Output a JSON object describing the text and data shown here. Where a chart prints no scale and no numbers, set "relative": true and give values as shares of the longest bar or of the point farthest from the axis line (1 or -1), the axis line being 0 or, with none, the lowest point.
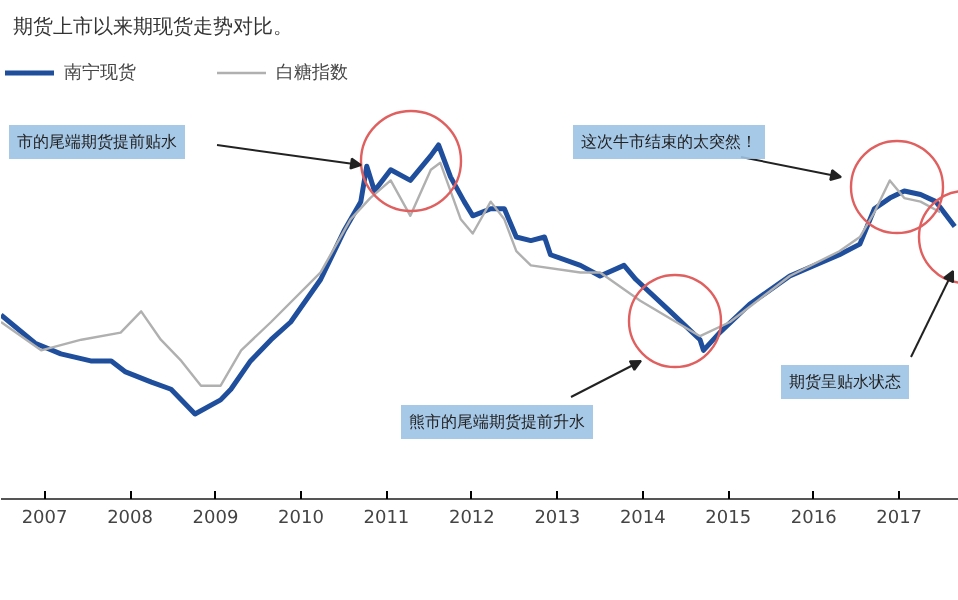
{
  "chart_data": {
    "type": "line",
    "title": "期货上市以来期现货走势对比。",
    "relative": true,
    "xlim": [
      2006.49,
      2017.7
    ],
    "xticks": [
      2007,
      2008,
      2009,
      2010,
      2011,
      2012,
      2013,
      2014,
      2015,
      2016,
      2017
    ],
    "grid": false,
    "legend": "top left",
    "marker": "none",
    "line_style": "solid",
    "series": [
      {
        "name": "南宁现货",
        "color": "#1f4e9c",
        "x": [
          2006.49,
          2006.89,
          2007.19,
          2007.54,
          2007.78,
          2007.94,
          2008.25,
          2008.48,
          2008.76,
          2009.06,
          2009.18,
          2009.41,
          2009.65,
          2009.88,
          2010.23,
          2010.51,
          2010.7,
          2010.77,
          2010.86,
          2011.05,
          2011.28,
          2011.52,
          2011.61,
          2011.75,
          2011.91,
          2012.01,
          2012.22,
          2012.38,
          2012.52,
          2012.69,
          2012.85,
          2012.92,
          2013.27,
          2013.5,
          2013.78,
          2013.92,
          2014.32,
          2014.67,
          2014.71,
          2014.9,
          2015.25,
          2015.72,
          2016.3,
          2016.54,
          2016.71,
          2016.89,
          2017.06,
          2017.25,
          2017.43,
          2017.65
        ],
        "values": [
          0.52,
          0.44,
          0.41,
          0.39,
          0.39,
          0.36,
          0.33,
          0.31,
          0.24,
          0.28,
          0.31,
          0.39,
          0.45,
          0.5,
          0.62,
          0.76,
          0.84,
          0.94,
          0.87,
          0.93,
          0.9,
          0.97,
          1.0,
          0.91,
          0.84,
          0.8,
          0.82,
          0.82,
          0.74,
          0.73,
          0.74,
          0.69,
          0.66,
          0.63,
          0.66,
          0.62,
          0.53,
          0.45,
          0.42,
          0.47,
          0.55,
          0.63,
          0.69,
          0.72,
          0.82,
          0.85,
          0.87,
          0.86,
          0.84,
          0.77
        ]
      },
      {
        "name": "白糖指数",
        "color": "#b0b0b0",
        "x": [
          2006.49,
          2006.96,
          2007.43,
          2007.89,
          2008.13,
          2008.36,
          2008.6,
          2008.83,
          2009.06,
          2009.3,
          2009.65,
          2010.23,
          2010.58,
          2010.81,
          2011.05,
          2011.28,
          2011.52,
          2011.63,
          2011.87,
          2012.01,
          2012.22,
          2012.38,
          2012.52,
          2012.69,
          2013.27,
          2013.5,
          2013.97,
          2014.67,
          2015.02,
          2015.72,
          2016.3,
          2016.54,
          2016.71,
          2016.89,
          2017.06,
          2017.25,
          2017.48
        ],
        "values": [
          0.5,
          0.42,
          0.45,
          0.47,
          0.53,
          0.45,
          0.39,
          0.32,
          0.32,
          0.42,
          0.5,
          0.64,
          0.79,
          0.85,
          0.9,
          0.8,
          0.93,
          0.95,
          0.79,
          0.75,
          0.84,
          0.79,
          0.7,
          0.66,
          0.64,
          0.64,
          0.56,
          0.46,
          0.5,
          0.63,
          0.7,
          0.74,
          0.81,
          0.9,
          0.85,
          0.84,
          0.81
        ]
      }
    ],
    "annotations": [
      "市的尾端期货提前贴水",
      "这次牛市结束的太突然！",
      "熊市的尾端期货提前升水",
      "期货呈贴水状态"
    ]
  }
}
